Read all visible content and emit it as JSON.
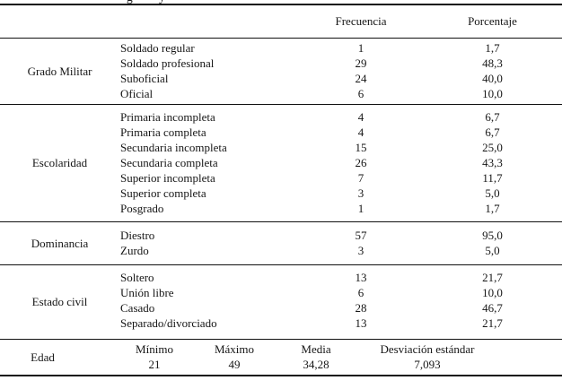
{
  "page": {
    "clipped_title_fragment": "g y"
  },
  "table": {
    "column_headers": {
      "frequency": "Frecuencia",
      "percentage": "Porcentaje"
    },
    "sections": [
      {
        "label": "Grado Militar",
        "rows": [
          {
            "name": "Soldado regular",
            "freq": "1",
            "pct": "1,7"
          },
          {
            "name": "Soldado profesional",
            "freq": "29",
            "pct": "48,3"
          },
          {
            "name": "Suboficial",
            "freq": "24",
            "pct": "40,0"
          },
          {
            "name": "Oficial",
            "freq": "6",
            "pct": "10,0"
          }
        ]
      },
      {
        "label": "Escolaridad",
        "rows": [
          {
            "name": "Primaria incompleta",
            "freq": "4",
            "pct": "6,7"
          },
          {
            "name": "Primaria completa",
            "freq": "4",
            "pct": "6,7"
          },
          {
            "name": "Secundaria incompleta",
            "freq": "15",
            "pct": "25,0"
          },
          {
            "name": "Secundaria completa",
            "freq": "26",
            "pct": "43,3"
          },
          {
            "name": "Superior incompleta",
            "freq": "7",
            "pct": "11,7"
          },
          {
            "name": "Superior completa",
            "freq": "3",
            "pct": "5,0"
          },
          {
            "name": "Posgrado",
            "freq": "1",
            "pct": "1,7"
          }
        ]
      },
      {
        "label": "Dominancia",
        "rows": [
          {
            "name": "Diestro",
            "freq": "57",
            "pct": "95,0"
          },
          {
            "name": "Zurdo",
            "freq": "3",
            "pct": "5,0"
          }
        ]
      },
      {
        "label": "Estado civil",
        "rows": [
          {
            "name": "Soltero",
            "freq": "13",
            "pct": "21,7"
          },
          {
            "name": "Unión libre",
            "freq": "6",
            "pct": "10,0"
          },
          {
            "name": "Casado",
            "freq": "28",
            "pct": "46,7"
          },
          {
            "name": "Separado/divorciado",
            "freq": "13",
            "pct": "21,7"
          }
        ]
      }
    ],
    "age_section": {
      "label": "Edad",
      "stats": [
        {
          "name": "Mínimo",
          "value": "21"
        },
        {
          "name": "Máximo",
          "value": "49"
        },
        {
          "name": "Media",
          "value": "34,28"
        },
        {
          "name": "Desviación estándar",
          "value": "7,093"
        }
      ]
    }
  }
}
